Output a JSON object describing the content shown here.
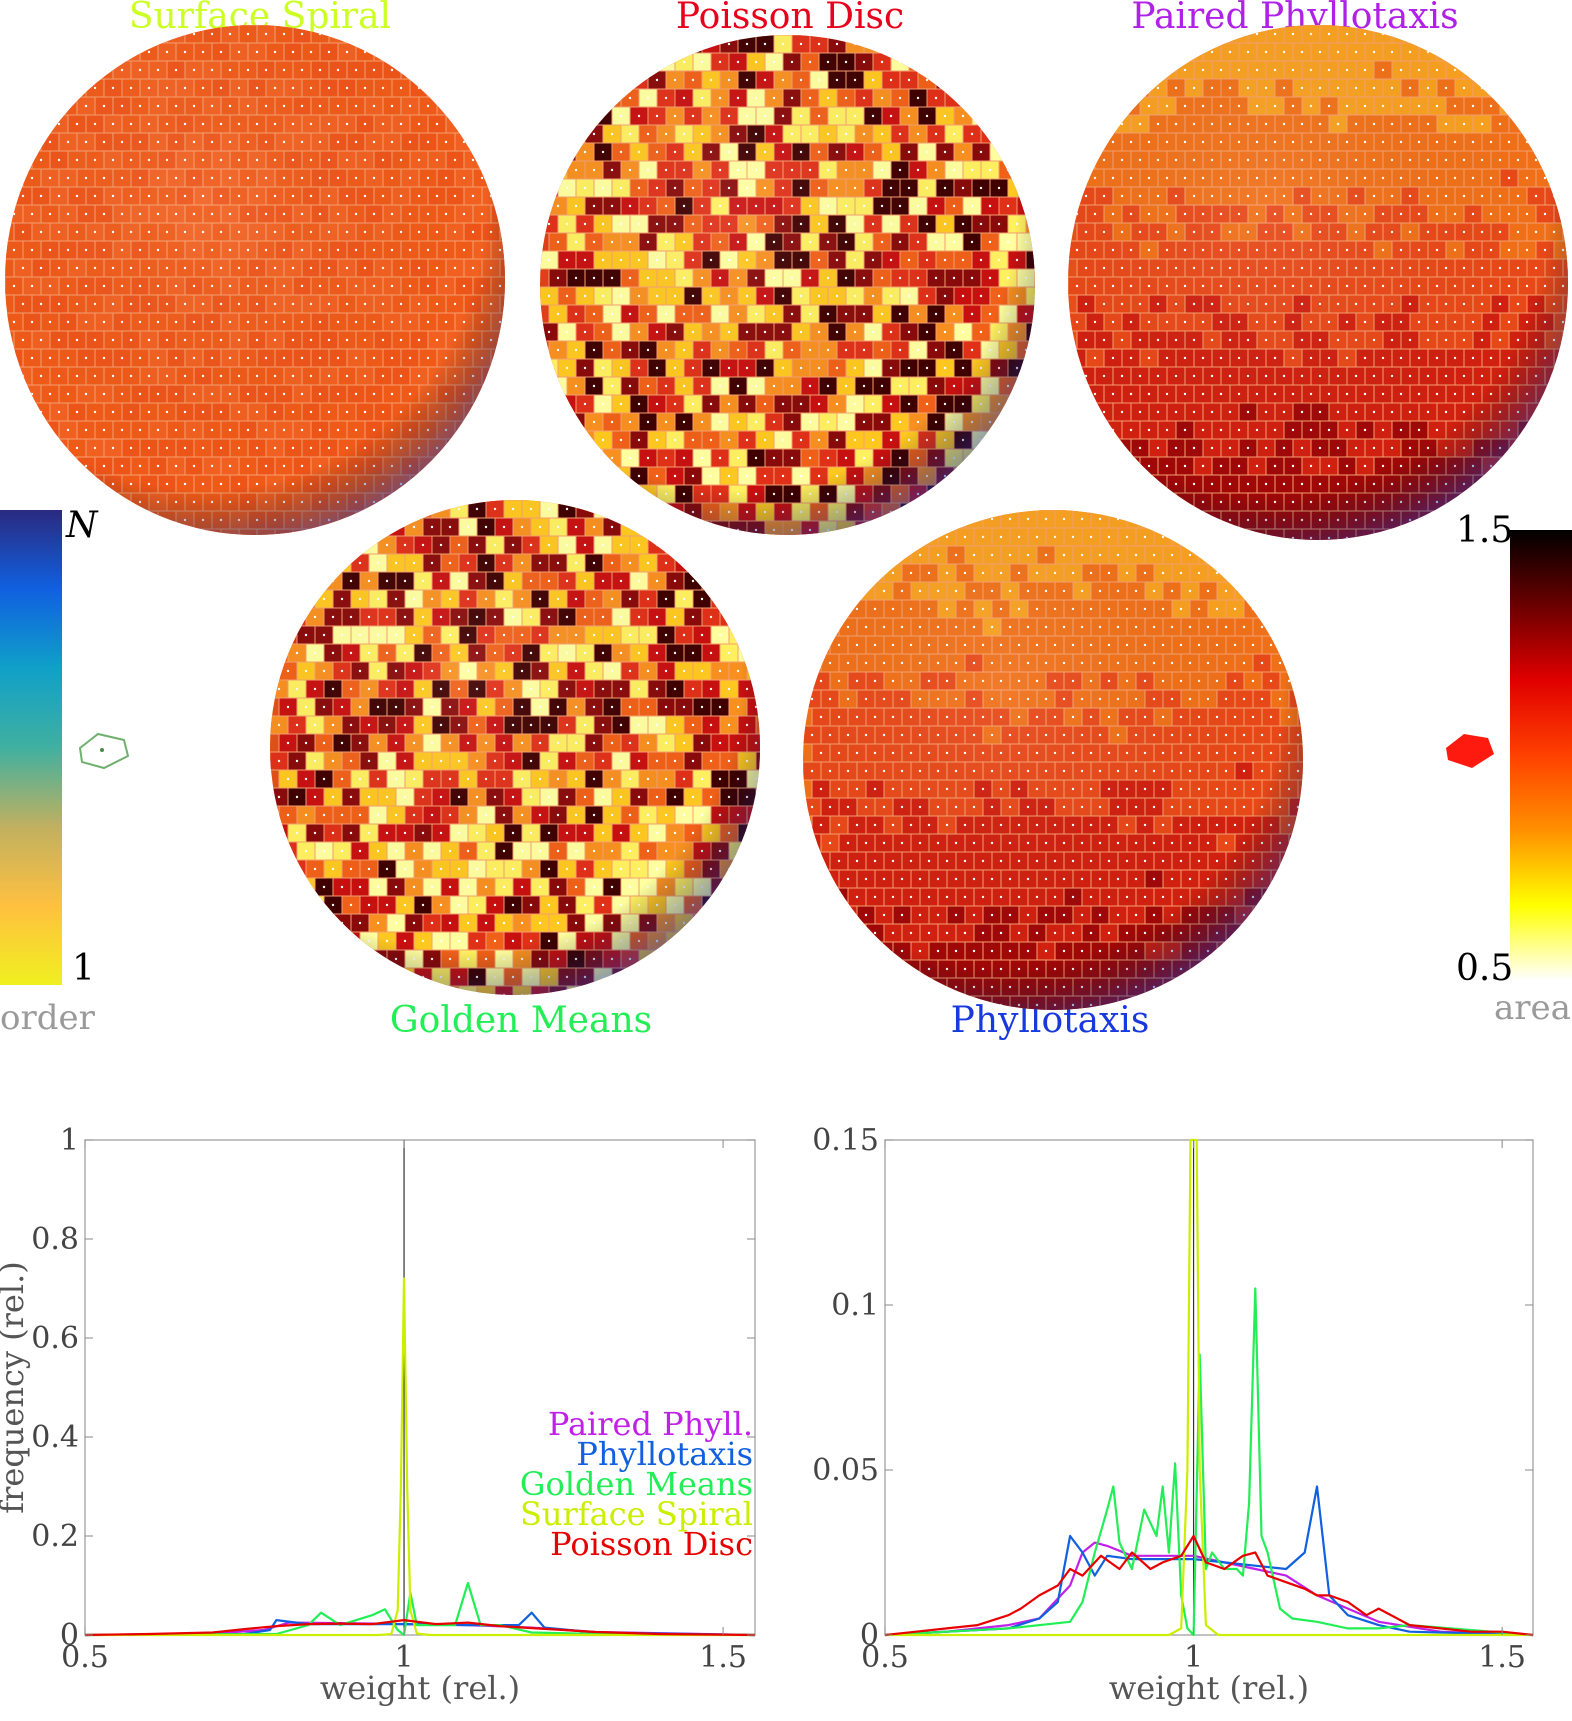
{
  "spheres": [
    {
      "id": "surface-spiral",
      "title": "Surface Spiral",
      "title_color": "#ccff22",
      "base": "#f05a18",
      "variation": "low"
    },
    {
      "id": "poisson-disc",
      "title": "Poisson Disc",
      "title_color": "#e8001c",
      "base": "#e0401a",
      "variation": "high"
    },
    {
      "id": "paired-phyllotaxis",
      "title": "Paired Phyllotaxis",
      "title_color": "#b020e8",
      "base": "#e85018",
      "variation": "gradient"
    },
    {
      "id": "golden-means",
      "title": "Golden Means",
      "title_color": "#22ee55",
      "base": "#e05018",
      "variation": "high"
    },
    {
      "id": "phyllotaxis",
      "title": "Phyllotaxis",
      "title_color": "#1838e0",
      "base": "#f07018",
      "variation": "gradient"
    }
  ],
  "colorbars": {
    "order": {
      "top_label": "N",
      "bottom_label": "1",
      "name": "order",
      "colors": [
        "#2a2a80",
        "#1060e0",
        "#10a0c8",
        "#40b0a0",
        "#c0b060",
        "#ffc040",
        "#f0f020"
      ]
    },
    "area": {
      "top_label": "1.5",
      "bottom_label": "0.5",
      "name": "area",
      "colors": [
        "#000000",
        "#6a0000",
        "#e00000",
        "#ff4000",
        "#ff9000",
        "#ffff00",
        "#ffffff"
      ]
    }
  },
  "chart_data": [
    {
      "type": "line",
      "xlabel": "weight (rel.)",
      "ylabel": "frequency (rel.)",
      "xlim": [
        0.5,
        1.55
      ],
      "ylim": [
        0,
        1
      ],
      "xticks": [
        "0.5",
        "1",
        "1.5"
      ],
      "yticks": [
        "0",
        "0.2",
        "0.4",
        "0.6",
        "0.8",
        "1"
      ],
      "legend": [
        "Paired Phyll.",
        "Phyllotaxis",
        "Golden Means",
        "Surface Spiral",
        "Poisson Disc"
      ],
      "legend_position": "bottom-right",
      "reference_line_x": 1,
      "series": [
        {
          "name": "Paired Phyll.",
          "color": "#c020e8",
          "x": [
            0.5,
            0.7,
            0.78,
            0.82,
            0.9,
            1.0,
            1.1,
            1.2,
            1.3,
            1.55
          ],
          "values": [
            0,
            0.003,
            0.01,
            0.025,
            0.024,
            0.022,
            0.02,
            0.015,
            0.006,
            0
          ]
        },
        {
          "name": "Phyllotaxis",
          "color": "#1060e0",
          "x": [
            0.5,
            0.75,
            0.79,
            0.8,
            0.85,
            0.9,
            1.0,
            1.1,
            1.18,
            1.2,
            1.22,
            1.3,
            1.55
          ],
          "values": [
            0,
            0.002,
            0.01,
            0.03,
            0.022,
            0.022,
            0.022,
            0.02,
            0.02,
            0.045,
            0.015,
            0.005,
            0
          ]
        },
        {
          "name": "Golden Means",
          "color": "#22ee55",
          "x": [
            0.5,
            0.8,
            0.85,
            0.87,
            0.9,
            0.95,
            0.97,
            0.99,
            1.0,
            1.01,
            1.02,
            1.05,
            1.08,
            1.1,
            1.12,
            1.15,
            1.2,
            1.3,
            1.55
          ],
          "values": [
            0,
            0.002,
            0.02,
            0.045,
            0.02,
            0.04,
            0.052,
            0.01,
            0.0,
            0.085,
            0.02,
            0.02,
            0.02,
            0.105,
            0.02,
            0.02,
            0.005,
            0.002,
            0
          ]
        },
        {
          "name": "Surface Spiral",
          "color": "#ccee00",
          "x": [
            0.5,
            0.96,
            0.98,
            0.99,
            0.995,
            1.0,
            1.005,
            1.01,
            1.02,
            1.04,
            1.55
          ],
          "values": [
            0,
            0,
            0.002,
            0.05,
            0.3,
            0.72,
            0.3,
            0.05,
            0.003,
            0,
            0
          ]
        },
        {
          "name": "Poisson Disc",
          "color": "#e80000",
          "x": [
            0.5,
            0.6,
            0.7,
            0.75,
            0.8,
            0.85,
            0.9,
            0.95,
            1.0,
            1.05,
            1.1,
            1.15,
            1.2,
            1.25,
            1.3,
            1.4,
            1.55
          ],
          "values": [
            0,
            0.002,
            0.005,
            0.012,
            0.018,
            0.022,
            0.023,
            0.022,
            0.03,
            0.022,
            0.025,
            0.018,
            0.014,
            0.01,
            0.006,
            0.002,
            0
          ]
        }
      ]
    },
    {
      "type": "line",
      "xlabel": "weight (rel.)",
      "ylabel": "",
      "xlim": [
        0.5,
        1.55
      ],
      "ylim": [
        0,
        0.15
      ],
      "xticks": [
        "0.5",
        "1",
        "1.5"
      ],
      "yticks": [
        "0",
        "0.05",
        "0.1",
        "0.15"
      ],
      "reference_line_x": 1,
      "series": [
        {
          "name": "Paired Phyll.",
          "color": "#c020e8",
          "x": [
            0.5,
            0.6,
            0.65,
            0.7,
            0.75,
            0.8,
            0.82,
            0.84,
            0.86,
            0.9,
            0.95,
            1.0,
            1.05,
            1.1,
            1.15,
            1.2,
            1.25,
            1.3,
            1.4,
            1.55
          ],
          "values": [
            0,
            0.001,
            0.002,
            0.003,
            0.005,
            0.015,
            0.025,
            0.028,
            0.027,
            0.024,
            0.024,
            0.024,
            0.022,
            0.02,
            0.018,
            0.012,
            0.008,
            0.004,
            0.001,
            0
          ]
        },
        {
          "name": "Phyllotaxis",
          "color": "#1060e0",
          "x": [
            0.5,
            0.7,
            0.75,
            0.78,
            0.8,
            0.82,
            0.84,
            0.86,
            0.9,
            0.95,
            1.0,
            1.05,
            1.1,
            1.15,
            1.18,
            1.2,
            1.22,
            1.25,
            1.3,
            1.35,
            1.55
          ],
          "values": [
            0,
            0.002,
            0.005,
            0.01,
            0.03,
            0.025,
            0.018,
            0.024,
            0.023,
            0.023,
            0.023,
            0.022,
            0.021,
            0.02,
            0.025,
            0.045,
            0.012,
            0.006,
            0.003,
            0.001,
            0
          ]
        },
        {
          "name": "Golden Means",
          "color": "#22ee55",
          "x": [
            0.5,
            0.6,
            0.7,
            0.8,
            0.82,
            0.84,
            0.86,
            0.87,
            0.88,
            0.9,
            0.92,
            0.94,
            0.95,
            0.96,
            0.97,
            0.98,
            0.99,
            1.0,
            1.01,
            1.02,
            1.03,
            1.05,
            1.07,
            1.08,
            1.09,
            1.1,
            1.11,
            1.12,
            1.14,
            1.16,
            1.2,
            1.25,
            1.3,
            1.35,
            1.55
          ],
          "values": [
            0,
            0.001,
            0.002,
            0.004,
            0.01,
            0.025,
            0.038,
            0.045,
            0.028,
            0.02,
            0.038,
            0.03,
            0.045,
            0.025,
            0.052,
            0.012,
            0.002,
            0.0,
            0.085,
            0.02,
            0.025,
            0.02,
            0.02,
            0.018,
            0.04,
            0.105,
            0.03,
            0.025,
            0.008,
            0.005,
            0.004,
            0.002,
            0.002,
            0.003,
            0
          ]
        },
        {
          "name": "Surface Spiral",
          "color": "#ccee00",
          "x": [
            0.5,
            0.96,
            0.98,
            0.99,
            0.995,
            1.0,
            1.005,
            1.01,
            1.02,
            1.04,
            1.55
          ],
          "values": [
            0,
            0,
            0.002,
            0.05,
            0.15,
            0.15,
            0.15,
            0.05,
            0.003,
            0,
            0
          ]
        },
        {
          "name": "Poisson Disc",
          "color": "#e80000",
          "x": [
            0.5,
            0.55,
            0.6,
            0.65,
            0.7,
            0.72,
            0.75,
            0.78,
            0.8,
            0.82,
            0.85,
            0.88,
            0.9,
            0.93,
            0.95,
            0.98,
            1.0,
            1.02,
            1.05,
            1.08,
            1.1,
            1.12,
            1.15,
            1.18,
            1.2,
            1.22,
            1.25,
            1.28,
            1.3,
            1.35,
            1.4,
            1.45,
            1.5,
            1.55
          ],
          "values": [
            0,
            0.001,
            0.002,
            0.003,
            0.006,
            0.008,
            0.012,
            0.015,
            0.02,
            0.018,
            0.024,
            0.02,
            0.025,
            0.02,
            0.022,
            0.024,
            0.03,
            0.022,
            0.02,
            0.024,
            0.025,
            0.018,
            0.016,
            0.014,
            0.012,
            0.012,
            0.01,
            0.006,
            0.008,
            0.003,
            0.002,
            0.001,
            0.001,
            0
          ]
        }
      ]
    }
  ]
}
